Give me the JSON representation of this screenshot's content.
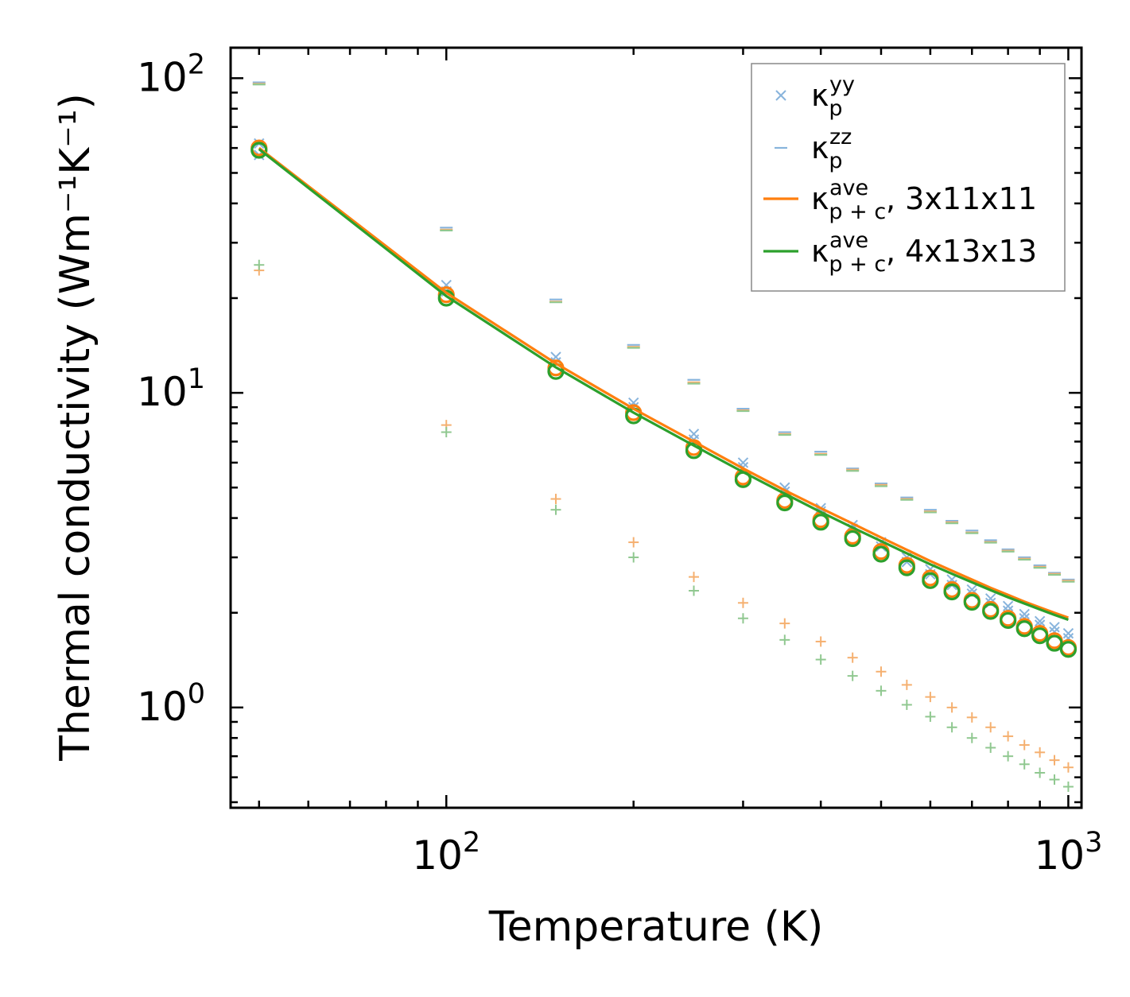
{
  "chart_data": {
    "type": "scatter",
    "xscale": "log",
    "yscale": "log",
    "xlabel": "Temperature (K)",
    "ylabel": "Thermal conductivity (Wm⁻¹K⁻¹)",
    "xlim": [
      45,
      1050
    ],
    "ylim": [
      0.48,
      125
    ],
    "x_ticks": [
      {
        "value": 100,
        "base": "10",
        "exp": "2"
      },
      {
        "value": 1000,
        "base": "10",
        "exp": "3"
      }
    ],
    "y_ticks": [
      {
        "value": 1,
        "base": "10",
        "exp": "0"
      },
      {
        "value": 10,
        "base": "10",
        "exp": "1"
      },
      {
        "value": 100,
        "base": "10",
        "exp": "2"
      }
    ],
    "temperatures": [
      50,
      100,
      150,
      200,
      250,
      300,
      350,
      400,
      450,
      500,
      550,
      600,
      650,
      700,
      750,
      800,
      850,
      900,
      950,
      1000
    ],
    "series": [
      {
        "name": "kappa_p_yy",
        "legend": {
          "symbol": "κ",
          "sub": "p",
          "sup": "yy",
          "suffix": ""
        },
        "marker": "x",
        "color": "#88b4dc",
        "values": [
          62,
          22,
          13,
          9.3,
          7.4,
          6.0,
          5.0,
          4.3,
          3.8,
          3.35,
          3.0,
          2.75,
          2.55,
          2.37,
          2.22,
          2.1,
          1.98,
          1.88,
          1.8,
          1.72
        ]
      },
      {
        "name": "kappa_p_yy_b",
        "legend": null,
        "marker": "x",
        "color": "#88b4dc",
        "values": [
          57,
          21,
          12.5,
          9.0,
          7.1,
          5.8,
          4.85,
          4.2,
          3.7,
          3.25,
          2.9,
          2.65,
          2.45,
          2.3,
          2.15,
          2.03,
          1.92,
          1.83,
          1.74,
          1.66
        ]
      },
      {
        "name": "kappa_p_zz",
        "legend": {
          "symbol": "κ",
          "sub": "p",
          "sup": "zz",
          "suffix": ""
        },
        "marker": "dash",
        "color": "#88b4dc",
        "values": [
          97,
          33.5,
          19.8,
          14.2,
          11.0,
          8.9,
          7.5,
          6.5,
          5.75,
          5.15,
          4.65,
          4.25,
          3.92,
          3.65,
          3.4,
          3.18,
          3.0,
          2.83,
          2.68,
          2.55
        ]
      },
      {
        "name": "kappa_zz_orange",
        "legend": null,
        "marker": "dash",
        "color": "#f5b070",
        "values": [
          96,
          33,
          19.5,
          14.0,
          10.8,
          8.8,
          7.4,
          6.4,
          5.7,
          5.1,
          4.6,
          4.2,
          3.88,
          3.6,
          3.36,
          3.15,
          2.97,
          2.8,
          2.66,
          2.53
        ]
      },
      {
        "name": "kappa_zz_green",
        "legend": null,
        "marker": "dash",
        "color": "#90c890",
        "values": [
          95.5,
          32.8,
          19.4,
          13.9,
          10.7,
          8.75,
          7.35,
          6.35,
          5.65,
          5.05,
          4.57,
          4.17,
          3.85,
          3.58,
          3.34,
          3.13,
          2.95,
          2.78,
          2.64,
          2.51
        ]
      },
      {
        "name": "kappa_c_3x11x11",
        "legend": null,
        "marker": "plus",
        "color": "#f5b070",
        "values": [
          24.5,
          7.9,
          4.6,
          3.35,
          2.6,
          2.15,
          1.85,
          1.62,
          1.44,
          1.3,
          1.18,
          1.08,
          1.0,
          0.93,
          0.865,
          0.81,
          0.76,
          0.72,
          0.68,
          0.645
        ]
      },
      {
        "name": "kappa_c_4x13x13",
        "legend": null,
        "marker": "plus",
        "color": "#90c890",
        "values": [
          25.5,
          7.5,
          4.25,
          3.0,
          2.35,
          1.92,
          1.64,
          1.42,
          1.26,
          1.13,
          1.02,
          0.935,
          0.865,
          0.8,
          0.745,
          0.7,
          0.66,
          0.62,
          0.59,
          0.56
        ]
      },
      {
        "name": "kappa_p_ave_3x11x11_circles",
        "legend": null,
        "marker": "circle",
        "color": "#ff7f0e",
        "values": [
          60,
          20.5,
          12.0,
          8.65,
          6.7,
          5.4,
          4.55,
          3.95,
          3.5,
          3.13,
          2.83,
          2.58,
          2.37,
          2.19,
          2.05,
          1.92,
          1.81,
          1.72,
          1.63,
          1.55
        ]
      },
      {
        "name": "kappa_p_ave_4x13x13_circles",
        "legend": null,
        "marker": "circle",
        "color": "#2ca02c",
        "values": [
          59,
          20.0,
          11.7,
          8.45,
          6.55,
          5.3,
          4.47,
          3.88,
          3.44,
          3.07,
          2.78,
          2.53,
          2.33,
          2.16,
          2.02,
          1.89,
          1.78,
          1.69,
          1.6,
          1.53
        ]
      },
      {
        "name": "kappa_pc_ave_3x11x11",
        "legend": {
          "symbol": "κ",
          "sub": "p + c",
          "sup": "ave",
          "suffix": ", 3x11x11"
        },
        "marker": "line",
        "color": "#ff7f0e",
        "values": [
          60,
          20.8,
          12.4,
          8.9,
          7.0,
          5.75,
          4.9,
          4.3,
          3.84,
          3.47,
          3.17,
          2.92,
          2.72,
          2.55,
          2.4,
          2.28,
          2.17,
          2.08,
          2.0,
          1.93
        ]
      },
      {
        "name": "kappa_pc_ave_4x13x13",
        "legend": {
          "symbol": "κ",
          "sub": "p + c",
          "sup": "ave",
          "suffix": ", 4x13x13"
        },
        "marker": "line",
        "color": "#2ca02c",
        "values": [
          59.5,
          20.3,
          12.05,
          8.65,
          6.8,
          5.6,
          4.78,
          4.18,
          3.73,
          3.38,
          3.09,
          2.85,
          2.66,
          2.5,
          2.36,
          2.24,
          2.14,
          2.05,
          1.97,
          1.9
        ]
      }
    ]
  }
}
